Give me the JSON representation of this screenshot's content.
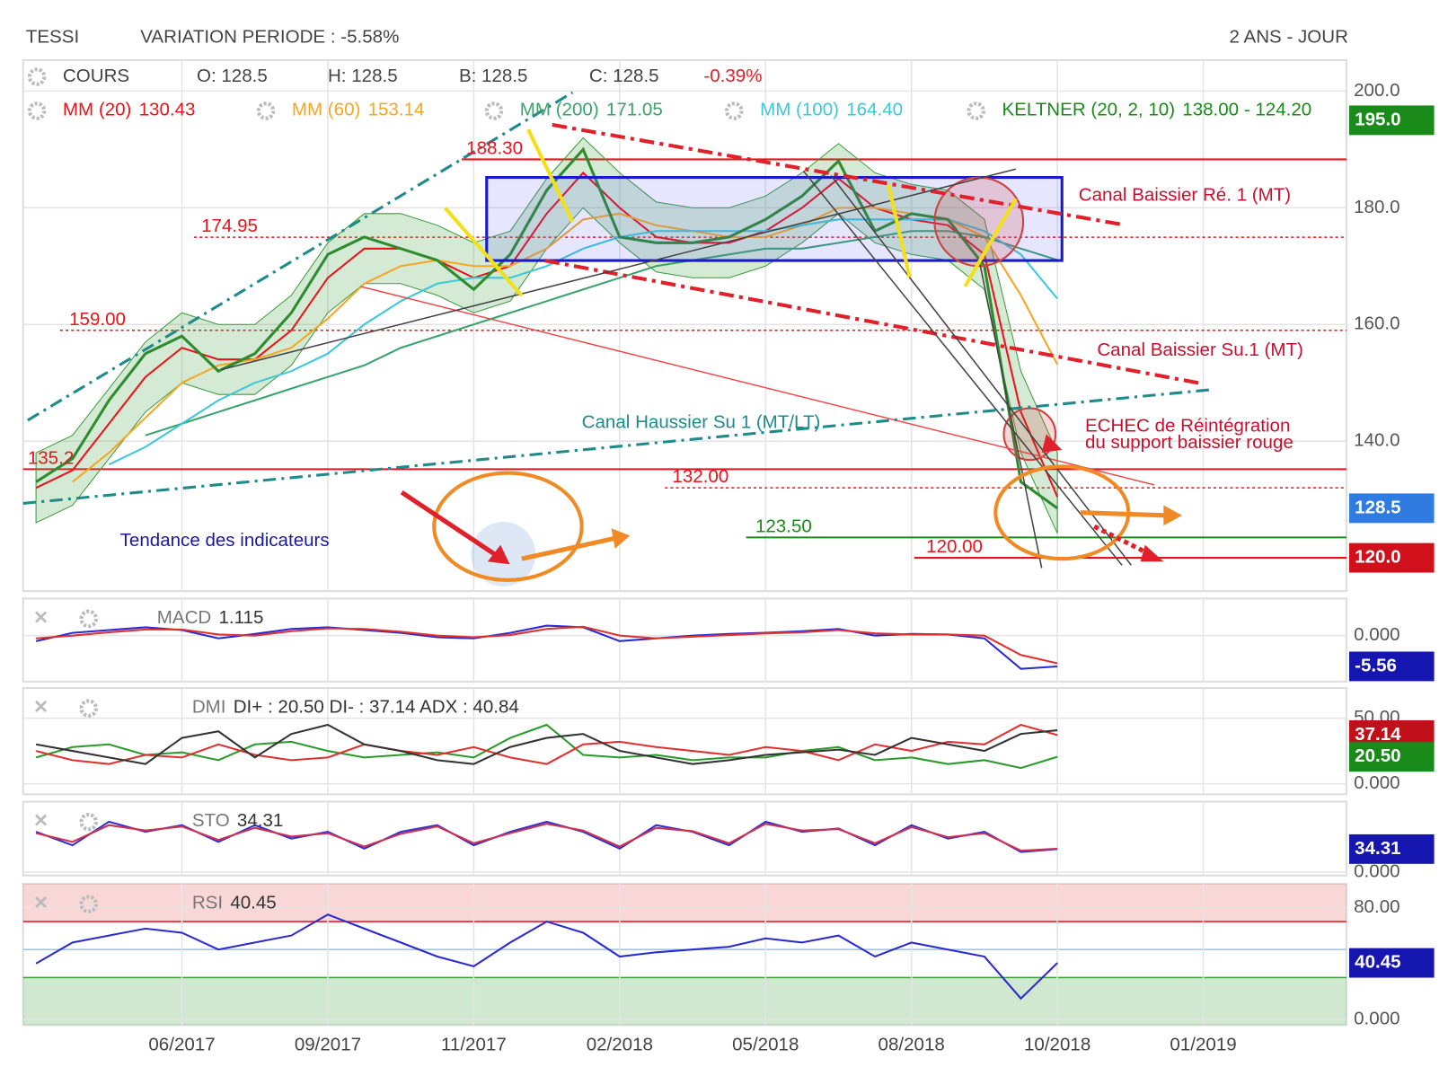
{
  "header": {
    "symbol": "TESSI",
    "variation": "VARIATION PERIODE : -5.58%",
    "period": "2 ANS - JOUR"
  },
  "chart_data": [
    {
      "type": "line",
      "title": "COURS",
      "quote": [
        "O: 128.5",
        "H: 128.5",
        "B: 128.5",
        "C: 128.5"
      ],
      "change": "-0.39%",
      "categories": [
        null,
        null,
        null,
        null,
        "06/2017",
        null,
        null,
        null,
        "09/2017",
        null,
        null,
        null,
        "11/2017",
        null,
        null,
        null,
        "02/2018",
        null,
        null,
        null,
        "05/2018",
        null,
        null,
        null,
        "08/2018",
        null,
        null,
        null,
        "10/2018",
        null,
        null,
        null,
        "01/2019"
      ],
      "ylim": [
        114.3,
        205.3
      ],
      "yticks": [
        {
          "value": 200,
          "label": "200.0"
        },
        {
          "value": 180,
          "label": "180.0"
        },
        {
          "value": 160,
          "label": "160.0"
        },
        {
          "value": 140,
          "label": "140.0"
        }
      ],
      "close": {
        "name": "COURS",
        "color": "#2e8b2e",
        "values": [
          133,
          137,
          147,
          155,
          158,
          152,
          155,
          162,
          172,
          175,
          173,
          171,
          166,
          172,
          183,
          190,
          175,
          174,
          174,
          175,
          178,
          182,
          188,
          176,
          179,
          178,
          170,
          133,
          128.5,
          null,
          null,
          null,
          null
        ]
      },
      "band": {
        "name": "KELTNER (20, 2, 10)",
        "label": "138.00 - 124.20",
        "color": "#3c9c3c",
        "upper": [
          138,
          141,
          149,
          157,
          162,
          160,
          160,
          165,
          174,
          179,
          179,
          177,
          174,
          176,
          185,
          192,
          186,
          181,
          180,
          180,
          182,
          186,
          191,
          186,
          184,
          183,
          178,
          152,
          138,
          null,
          null,
          null,
          null
        ],
        "lower": [
          126,
          129,
          137,
          145,
          150,
          148,
          148,
          153,
          162,
          167,
          167,
          165,
          162,
          164,
          173,
          180,
          174,
          169,
          168,
          168,
          170,
          174,
          179,
          174,
          172,
          171,
          166,
          138,
          124.2,
          null,
          null,
          null,
          null
        ]
      },
      "series": [
        {
          "name": "MM (20)",
          "last_label": "130.43",
          "color": "#e8141b",
          "values": [
            132,
            135,
            143,
            151,
            156,
            154,
            154,
            159,
            168,
            173,
            173,
            171,
            168,
            170,
            179,
            186,
            180,
            175,
            174,
            174,
            176,
            180,
            185,
            180,
            178,
            177,
            172,
            145,
            130.43,
            null,
            null,
            null,
            null
          ]
        },
        {
          "name": "MM (60)",
          "last_label": "153.14",
          "color": "#f5a623",
          "values": [
            null,
            133,
            138,
            144,
            150,
            153,
            154,
            156,
            161,
            167,
            170,
            171,
            170,
            170,
            173,
            178,
            179,
            177,
            176,
            175,
            175,
            177,
            180,
            180,
            179,
            178,
            175,
            165,
            153.14,
            null,
            null,
            null,
            null
          ]
        },
        {
          "name": "MM (200)",
          "last_label": "171.05",
          "color": "#3aa36c",
          "values": [
            null,
            null,
            null,
            141,
            143,
            145,
            147,
            149,
            151,
            153,
            156,
            158,
            160,
            162,
            164,
            166,
            168,
            170,
            171,
            172,
            173,
            173,
            174,
            175,
            176,
            176,
            175,
            173,
            171.05,
            null,
            null,
            null,
            null
          ]
        },
        {
          "name": "MM (100)",
          "last_label": "164.40",
          "color": "#3cc8d8",
          "values": [
            null,
            null,
            136,
            139,
            143,
            147,
            150,
            152,
            155,
            160,
            164,
            167,
            168,
            168,
            170,
            173,
            175,
            176,
            176,
            176,
            176,
            177,
            178,
            178,
            178,
            178,
            176,
            172,
            164.4,
            null,
            null,
            null,
            null
          ]
        }
      ],
      "levels": [
        {
          "value": 188.3,
          "label": "188.30",
          "color": "#e8141b",
          "style": "solid"
        },
        {
          "value": 174.95,
          "label": "174.95",
          "color": "#e8141b",
          "style": "dotted"
        },
        {
          "value": 159,
          "label": "159.00",
          "color": "#e8141b",
          "style": "dotted"
        },
        {
          "value": 135.2,
          "label": "135.2",
          "color": "#e8141b",
          "style": "solid"
        },
        {
          "value": 132,
          "label": "132.00",
          "color": "#e8141b",
          "style": "dotted"
        },
        {
          "value": 123.5,
          "label": "123.50",
          "color": "#1a8a1a",
          "style": "solid"
        },
        {
          "value": 120,
          "label": "120.00",
          "color": "#e8141b",
          "style": "solid"
        }
      ],
      "badges": [
        {
          "value": 195,
          "label": "195.0",
          "color": "#1a8a1a"
        },
        {
          "value": 128.5,
          "label": "128.5",
          "color": "#2f7be0"
        },
        {
          "value": 120,
          "label": "120.0",
          "color": "#d0101a"
        }
      ],
      "annotations": [
        {
          "text": "Canal Baissier Ré. 1 (MT)",
          "color": "#c8102e"
        },
        {
          "text": "Canal Baissier Su.1 (MT)",
          "color": "#c8102e"
        },
        {
          "text": "Canal Haussier Su 1 (MT/LT)",
          "color": "#1f8a8a"
        },
        {
          "text": "ECHEC de Réintégration",
          "color": "#c8102e"
        },
        {
          "text": "du support baissier rouge",
          "color": "#c8102e"
        },
        {
          "text": "Tendance des indicateurs",
          "color": "#1a1aa0"
        }
      ]
    },
    {
      "type": "line",
      "title": "MACD",
      "header": "1.115",
      "ylim": [
        -8.3,
        6.7
      ],
      "yticks": [
        {
          "value": 0,
          "label": "0.000"
        }
      ],
      "series": [
        {
          "color": "#2a2ad0",
          "values": [
            -1,
            0.5,
            1,
            1.5,
            1,
            -0.5,
            0.3,
            1.2,
            1.5,
            1,
            0.5,
            -0.3,
            -0.5,
            0.5,
            1.8,
            1.5,
            -1,
            -0.5,
            0,
            0.3,
            0.5,
            0.8,
            1.2,
            0,
            0.3,
            0.2,
            -0.5,
            -6,
            -5.56,
            null,
            null,
            null,
            null
          ]
        },
        {
          "color": "#e03030",
          "values": [
            -0.5,
            0,
            0.6,
            1.1,
            1.1,
            0.2,
            0,
            0.8,
            1.3,
            1.2,
            0.7,
            0,
            -0.3,
            0.1,
            1.2,
            1.6,
            0,
            -0.5,
            -0.2,
            0.1,
            0.4,
            0.6,
            1,
            0.4,
            0.2,
            0.2,
            0,
            -3.5,
            -5,
            null,
            null,
            null,
            null
          ]
        }
      ],
      "badges": [
        {
          "value": -5.56,
          "label": "-5.56",
          "color": "#1515b0"
        }
      ]
    },
    {
      "type": "line",
      "title": "DMI",
      "header": "DI+ : 20.50 DI- : 37.14 ADX : 40.84",
      "ylim": [
        -8,
        73
      ],
      "yticks": [
        {
          "value": 50,
          "label": "50.00"
        },
        {
          "value": 0,
          "label": "0.000"
        }
      ],
      "series": [
        {
          "color": "#2a9a2a",
          "values": [
            20,
            28,
            30,
            22,
            24,
            18,
            30,
            32,
            25,
            20,
            22,
            24,
            20,
            35,
            45,
            22,
            20,
            22,
            18,
            20,
            20,
            25,
            28,
            18,
            20,
            15,
            18,
            12,
            20.5,
            null,
            null,
            null,
            null
          ]
        },
        {
          "color": "#e03030",
          "values": [
            25,
            18,
            15,
            22,
            20,
            30,
            22,
            18,
            20,
            30,
            25,
            22,
            28,
            20,
            15,
            30,
            32,
            28,
            25,
            22,
            28,
            25,
            18,
            30,
            25,
            32,
            30,
            45,
            37.14,
            null,
            null,
            null,
            null
          ]
        },
        {
          "color": "#333333",
          "values": [
            30,
            25,
            20,
            15,
            35,
            40,
            20,
            38,
            45,
            30,
            25,
            18,
            15,
            28,
            35,
            38,
            25,
            20,
            15,
            18,
            22,
            24,
            26,
            22,
            35,
            30,
            25,
            38,
            40.84,
            null,
            null,
            null,
            null
          ]
        }
      ],
      "badges": [
        {
          "value": 37.14,
          "label": "37.14",
          "color": "#c0101a"
        },
        {
          "value": 20.5,
          "label": "20.50",
          "color": "#1a8a1a"
        }
      ]
    },
    {
      "type": "line",
      "title": "STO",
      "header": "34.31",
      "ylim": [
        -5,
        105
      ],
      "yticks": [
        {
          "value": 0,
          "label": "0.000"
        }
      ],
      "series": [
        {
          "color": "#3030d0",
          "values": [
            60,
            40,
            75,
            60,
            70,
            45,
            70,
            50,
            60,
            35,
            60,
            70,
            40,
            60,
            75,
            60,
            35,
            70,
            60,
            40,
            75,
            60,
            65,
            40,
            70,
            50,
            60,
            30,
            34.31,
            null,
            null,
            null,
            null
          ]
        },
        {
          "color": "#d03050",
          "values": [
            58,
            45,
            70,
            62,
            68,
            48,
            66,
            53,
            58,
            38,
            57,
            68,
            43,
            58,
            72,
            62,
            38,
            66,
            61,
            43,
            72,
            62,
            64,
            43,
            67,
            52,
            58,
            32,
            35,
            null,
            null,
            null,
            null
          ]
        }
      ],
      "badges": [
        {
          "value": 34.31,
          "label": "34.31",
          "color": "#1515b0"
        }
      ]
    },
    {
      "type": "line",
      "title": "RSI",
      "header": "40.45",
      "ylim": [
        -4,
        97
      ],
      "yticks": [
        {
          "value": 80,
          "label": "80.00"
        },
        {
          "value": 0,
          "label": "0.000"
        }
      ],
      "zones": {
        "overbought": 70,
        "mid": 50,
        "oversold": 30
      },
      "series": [
        {
          "color": "#2a2ad0",
          "values": [
            40,
            55,
            60,
            65,
            62,
            50,
            55,
            60,
            75,
            65,
            55,
            45,
            38,
            55,
            70,
            62,
            45,
            48,
            50,
            52,
            58,
            55,
            60,
            45,
            55,
            50,
            45,
            15,
            40.45,
            null,
            null,
            null,
            null
          ]
        }
      ],
      "badges": [
        {
          "value": 40.45,
          "label": "40.45",
          "color": "#1515b0"
        }
      ]
    }
  ]
}
